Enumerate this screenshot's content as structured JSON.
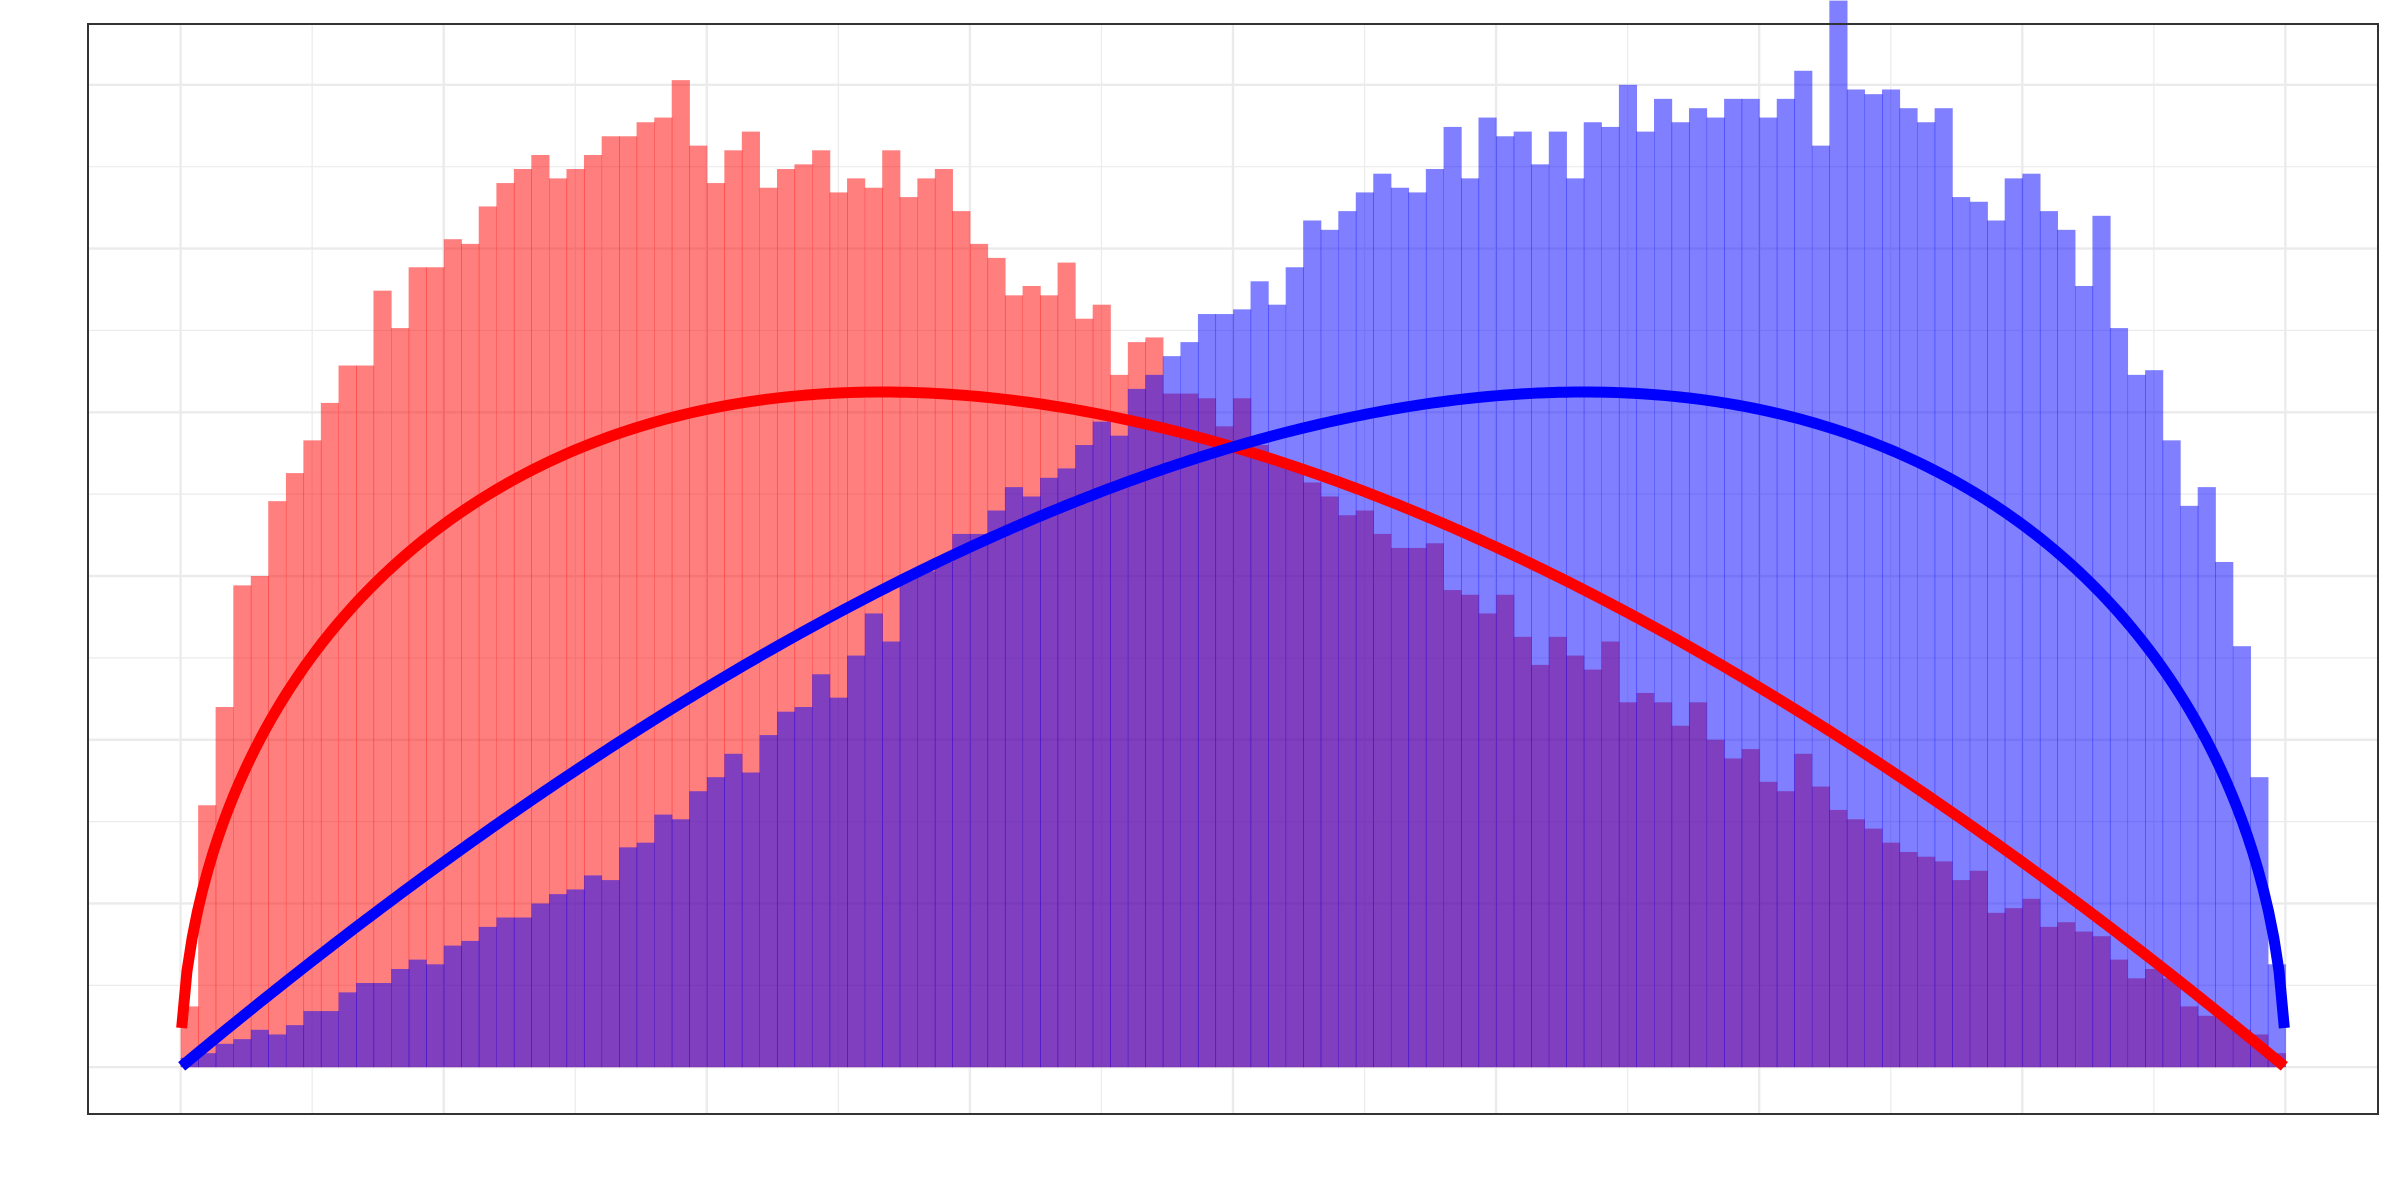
{
  "chart_data": {
    "type": "bar",
    "title": "",
    "xlabel": "",
    "ylabel": "",
    "xlim": [
      -0.044,
      1.044
    ],
    "ylim": [
      -0.1,
      2.23
    ],
    "bin_width": 0.00833,
    "grid": true,
    "legend": "none",
    "series": [
      {
        "color": "#FF0000",
        "bar_opacity": 0.5,
        "curve": {
          "a": 1.5,
          "b": 2
        },
        "bins_x": [
          0.0042,
          0.0125,
          0.0208,
          0.0292,
          0.0375,
          0.0458,
          0.0542,
          0.0625,
          0.0708,
          0.0792,
          0.0875,
          0.0958,
          0.1042,
          0.1125,
          0.1208,
          0.1292,
          0.1375,
          0.1458,
          0.1542,
          0.1625,
          0.1708,
          0.1792,
          0.1875,
          0.1958,
          0.2042,
          0.2125,
          0.2208,
          0.2292,
          0.2375,
          0.2458,
          0.2542,
          0.2625,
          0.2708,
          0.2792,
          0.2875,
          0.2958,
          0.3042,
          0.3125,
          0.3208,
          0.3292,
          0.3375,
          0.3458,
          0.3542,
          0.3625,
          0.3708,
          0.3792,
          0.3875,
          0.3958,
          0.4042,
          0.4125,
          0.4208,
          0.4292,
          0.4375,
          0.4458,
          0.4542,
          0.4625,
          0.4708,
          0.4792,
          0.4875,
          0.4958,
          0.5042,
          0.5125,
          0.5208,
          0.5292,
          0.5375,
          0.5458,
          0.5542,
          0.5625,
          0.5708,
          0.5792,
          0.5875,
          0.5958,
          0.6042,
          0.6125,
          0.6208,
          0.6292,
          0.6375,
          0.6458,
          0.6542,
          0.6625,
          0.6708,
          0.6792,
          0.6875,
          0.6958,
          0.7042,
          0.7125,
          0.7208,
          0.7292,
          0.7375,
          0.7458,
          0.7542,
          0.7625,
          0.7708,
          0.7792,
          0.7875,
          0.7958,
          0.8042,
          0.8125,
          0.8208,
          0.8292,
          0.8375,
          0.8458,
          0.8542,
          0.8625,
          0.8708,
          0.8792,
          0.8875,
          0.8958,
          0.9042,
          0.9125,
          0.9208,
          0.9292,
          0.9375,
          0.9458,
          0.9542,
          0.9625,
          0.9708,
          0.9792,
          0.9875,
          0.9958
        ],
        "bins_y": [
          0.13,
          0.56,
          0.77,
          1.03,
          1.05,
          1.21,
          1.27,
          1.34,
          1.42,
          1.5,
          1.5,
          1.66,
          1.58,
          1.71,
          1.71,
          1.77,
          1.76,
          1.84,
          1.89,
          1.92,
          1.95,
          1.9,
          1.92,
          1.95,
          1.99,
          1.99,
          2.02,
          2.03,
          2.11,
          1.97,
          1.89,
          1.96,
          2.0,
          1.88,
          1.92,
          1.93,
          1.96,
          1.87,
          1.9,
          1.88,
          1.96,
          1.86,
          1.9,
          1.92,
          1.83,
          1.76,
          1.73,
          1.65,
          1.67,
          1.65,
          1.72,
          1.6,
          1.63,
          1.48,
          1.55,
          1.56,
          1.44,
          1.44,
          1.43,
          1.37,
          1.43,
          1.33,
          1.3,
          1.28,
          1.25,
          1.22,
          1.18,
          1.19,
          1.14,
          1.11,
          1.11,
          1.12,
          1.02,
          1.01,
          0.97,
          1.01,
          0.92,
          0.86,
          0.92,
          0.88,
          0.85,
          0.91,
          0.78,
          0.8,
          0.78,
          0.73,
          0.78,
          0.7,
          0.66,
          0.68,
          0.61,
          0.59,
          0.67,
          0.6,
          0.55,
          0.53,
          0.51,
          0.48,
          0.46,
          0.45,
          0.44,
          0.4,
          0.42,
          0.33,
          0.34,
          0.36,
          0.3,
          0.31,
          0.29,
          0.28,
          0.23,
          0.19,
          0.21,
          0.19,
          0.13,
          0.11,
          0.11,
          0.08,
          0.07,
          0.03
        ]
      },
      {
        "color": "#0000FF",
        "bar_opacity": 0.5,
        "curve": {
          "a": 2,
          "b": 1.5
        },
        "bins_x": [
          0.0042,
          0.0125,
          0.0208,
          0.0292,
          0.0375,
          0.0458,
          0.0542,
          0.0625,
          0.0708,
          0.0792,
          0.0875,
          0.0958,
          0.1042,
          0.1125,
          0.1208,
          0.1292,
          0.1375,
          0.1458,
          0.1542,
          0.1625,
          0.1708,
          0.1792,
          0.1875,
          0.1958,
          0.2042,
          0.2125,
          0.2208,
          0.2292,
          0.2375,
          0.2458,
          0.2542,
          0.2625,
          0.2708,
          0.2792,
          0.2875,
          0.2958,
          0.3042,
          0.3125,
          0.3208,
          0.3292,
          0.3375,
          0.3458,
          0.3542,
          0.3625,
          0.3708,
          0.3792,
          0.3875,
          0.3958,
          0.4042,
          0.4125,
          0.4208,
          0.4292,
          0.4375,
          0.4458,
          0.4542,
          0.4625,
          0.4708,
          0.4792,
          0.4875,
          0.4958,
          0.5042,
          0.5125,
          0.5208,
          0.5292,
          0.5375,
          0.5458,
          0.5542,
          0.5625,
          0.5708,
          0.5792,
          0.5875,
          0.5958,
          0.6042,
          0.6125,
          0.6208,
          0.6292,
          0.6375,
          0.6458,
          0.6542,
          0.6625,
          0.6708,
          0.6792,
          0.6875,
          0.6958,
          0.7042,
          0.7125,
          0.7208,
          0.7292,
          0.7375,
          0.7458,
          0.7542,
          0.7625,
          0.7708,
          0.7792,
          0.7875,
          0.7958,
          0.8042,
          0.8125,
          0.8208,
          0.8292,
          0.8375,
          0.8458,
          0.8542,
          0.8625,
          0.8708,
          0.8792,
          0.8875,
          0.8958,
          0.9042,
          0.9125,
          0.9208,
          0.9292,
          0.9375,
          0.9458,
          0.9542,
          0.9625,
          0.9708,
          0.9792,
          0.9875,
          0.9958
        ],
        "bins_y": [
          0.02,
          0.03,
          0.05,
          0.06,
          0.08,
          0.07,
          0.09,
          0.12,
          0.12,
          0.16,
          0.18,
          0.18,
          0.21,
          0.23,
          0.22,
          0.26,
          0.27,
          0.3,
          0.32,
          0.32,
          0.35,
          0.37,
          0.38,
          0.41,
          0.4,
          0.47,
          0.48,
          0.54,
          0.53,
          0.59,
          0.62,
          0.67,
          0.63,
          0.71,
          0.76,
          0.77,
          0.84,
          0.79,
          0.88,
          0.97,
          0.91,
          1.05,
          1.06,
          1.08,
          1.14,
          1.14,
          1.19,
          1.24,
          1.22,
          1.26,
          1.28,
          1.33,
          1.38,
          1.35,
          1.45,
          1.48,
          1.52,
          1.55,
          1.61,
          1.61,
          1.62,
          1.68,
          1.63,
          1.71,
          1.81,
          1.79,
          1.83,
          1.87,
          1.91,
          1.88,
          1.87,
          1.92,
          2.01,
          1.9,
          2.03,
          1.99,
          2.0,
          1.93,
          2.0,
          1.9,
          2.02,
          2.01,
          2.1,
          2.0,
          2.07,
          2.02,
          2.05,
          2.03,
          2.07,
          2.07,
          2.03,
          2.07,
          2.13,
          1.97,
          2.28,
          2.09,
          2.08,
          2.09,
          2.05,
          2.02,
          2.05,
          1.86,
          1.85,
          1.81,
          1.9,
          1.91,
          1.83,
          1.79,
          1.67,
          1.82,
          1.58,
          1.48,
          1.49,
          1.34,
          1.2,
          1.24,
          1.08,
          0.9,
          0.62,
          0.22
        ]
      }
    ]
  }
}
